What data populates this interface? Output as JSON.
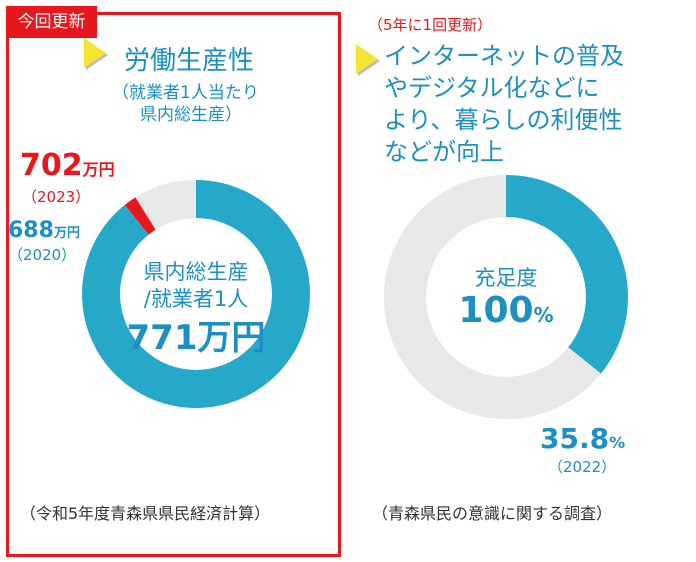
{
  "left_panel": {
    "badge": "今回更新",
    "title": "労働生産性",
    "subtitle_line1": "（就業者1人当たり",
    "subtitle_line2": "県内総生産）",
    "current_value_num": "702",
    "current_value_unit": "万円",
    "current_year": "（2023）",
    "previous_value_num": "688",
    "previous_value_unit": "万円",
    "previous_year": "（2020）",
    "center_label_line1": "県内総生産",
    "center_label_line2": "/就業者1人",
    "center_value": "771万円",
    "source": "（令和5年度青森県県民経済計算）"
  },
  "right_panel": {
    "update_note": "（5年に1回更新）",
    "title_line1": "インターネットの普及",
    "title_line2": "やデジタル化などに",
    "title_line3": "より、暮らしの利便性",
    "title_line4": "などが向上",
    "center_label": "充足度",
    "center_value_num": "100",
    "center_value_unit": "%",
    "value_num": "35.8",
    "value_unit": "%",
    "value_year": "（2022）",
    "source": "（青森県民の意識に関する調査）"
  },
  "chart_data": [
    {
      "type": "pie",
      "segments": [
        {
          "label": "2020 value",
          "value": 688,
          "color": "#26a9c8"
        },
        {
          "label": "2020→2023 increase",
          "value": 14,
          "color": "#e8161d"
        },
        {
          "label": "remaining to target",
          "value": 69,
          "color": "#e8e8e8"
        }
      ],
      "target": 771,
      "center_text": [
        "県内総生産",
        "/就業者1人",
        "771万円"
      ]
    },
    {
      "type": "pie",
      "segments": [
        {
          "label": "achieved",
          "value": 35.8,
          "color": "#26a9c8"
        },
        {
          "label": "remaining",
          "value": 64.2,
          "color": "#e8e8e8"
        }
      ],
      "center_text": [
        "充足度",
        "100%"
      ]
    }
  ]
}
